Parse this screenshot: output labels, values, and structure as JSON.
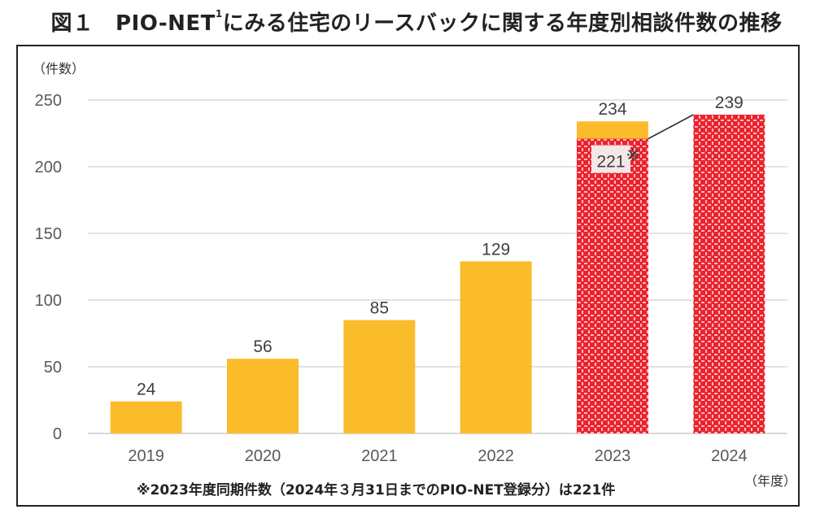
{
  "title": {
    "prefix": "図１　PIO-NET",
    "superscript": "1",
    "suffix": "にみる住宅のリースバックに関する年度別相談件数の推移"
  },
  "chart_data": {
    "type": "bar",
    "title": "図１　PIO-NET¹にみる住宅のリースバックに関する年度別相談件数の推移",
    "ylabel": "（件数）",
    "xlabel": "（年度）",
    "ylim": [
      0,
      250
    ],
    "yticks": [
      0,
      50,
      100,
      150,
      200,
      250
    ],
    "grid": true,
    "categories": [
      "2019",
      "2020",
      "2021",
      "2022",
      "2023",
      "2024"
    ],
    "values": [
      24,
      56,
      85,
      129,
      234,
      239
    ],
    "data_labels": [
      "24",
      "56",
      "85",
      "129",
      "234",
      "239"
    ],
    "bar_styles": [
      "solid",
      "solid",
      "solid",
      "solid",
      "solid",
      "pattern"
    ],
    "overlay": {
      "category": "2023",
      "value": 221,
      "label": "221",
      "marker": "※",
      "style": "pattern"
    },
    "connector": {
      "from": "2023@221",
      "to": "2024@239"
    },
    "footnote": "※2023年度同期件数（2024年３月31日までのPIO-NET登録分）は221件",
    "colors": {
      "bar": "#FBBC2C",
      "pattern_base": "#E8242F",
      "pattern_dots": "#FFC9CC",
      "grid": "#D9D9D9",
      "connector": "#222222"
    }
  }
}
